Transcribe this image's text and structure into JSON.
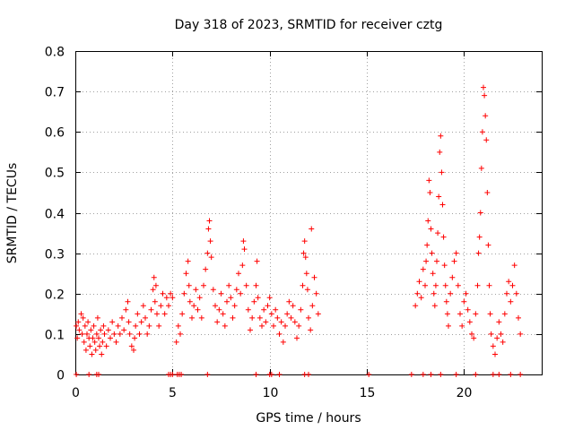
{
  "chart_data": {
    "type": "scatter",
    "title": "Day 318 of 2023, SRMTID for receiver cztg",
    "xlabel": "GPS time / hours",
    "ylabel": "SRMTID / TECUs",
    "xlim": [
      0,
      24
    ],
    "ylim": [
      0,
      0.8
    ],
    "xticks": [
      0,
      5,
      10,
      15,
      20
    ],
    "yticks": [
      0,
      0.1,
      0.2,
      0.3,
      0.4,
      0.5,
      0.6,
      0.7,
      0.8
    ],
    "grid": true,
    "marker": "+",
    "color": "#ff0000",
    "series": [
      {
        "name": "SRMTID",
        "points": [
          [
            0.05,
            0.12
          ],
          [
            0.1,
            0.09
          ],
          [
            0.15,
            0.13
          ],
          [
            0.2,
            0.11
          ],
          [
            0.3,
            0.15
          ],
          [
            0.35,
            0.1
          ],
          [
            0.4,
            0.14
          ],
          [
            0.45,
            0.08
          ],
          [
            0.5,
            0.12
          ],
          [
            0.55,
            0.06
          ],
          [
            0.6,
            0.1
          ],
          [
            0.65,
            0.13
          ],
          [
            0.7,
            0.09
          ],
          [
            0.75,
            0.07
          ],
          [
            0.8,
            0.11
          ],
          [
            0.85,
            0.05
          ],
          [
            0.9,
            0.09
          ],
          [
            0.95,
            0.12
          ],
          [
            1.0,
            0.08
          ],
          [
            1.05,
            0.06
          ],
          [
            1.1,
            0.1
          ],
          [
            1.15,
            0.14
          ],
          [
            1.2,
            0.09
          ],
          [
            1.25,
            0.07
          ],
          [
            1.3,
            0.11
          ],
          [
            1.35,
            0.05
          ],
          [
            1.4,
            0.08
          ],
          [
            1.45,
            0.12
          ],
          [
            1.5,
            0.1
          ],
          [
            1.6,
            0.07
          ],
          [
            1.7,
            0.11
          ],
          [
            1.8,
            0.09
          ],
          [
            1.9,
            0.13
          ],
          [
            2.0,
            0.1
          ],
          [
            2.1,
            0.08
          ],
          [
            2.2,
            0.12
          ],
          [
            2.3,
            0.1
          ],
          [
            2.4,
            0.14
          ],
          [
            2.5,
            0.11
          ],
          [
            2.6,
            0.16
          ],
          [
            2.7,
            0.18
          ],
          [
            2.75,
            0.13
          ],
          [
            2.8,
            0.1
          ],
          [
            2.9,
            0.07
          ],
          [
            3.0,
            0.06
          ],
          [
            3.05,
            0.09
          ],
          [
            3.1,
            0.12
          ],
          [
            3.2,
            0.15
          ],
          [
            3.3,
            0.1
          ],
          [
            3.4,
            0.13
          ],
          [
            3.5,
            0.17
          ],
          [
            3.6,
            0.14
          ],
          [
            3.7,
            0.1
          ],
          [
            3.8,
            0.12
          ],
          [
            3.9,
            0.16
          ],
          [
            4.0,
            0.21
          ],
          [
            4.05,
            0.24
          ],
          [
            4.1,
            0.18
          ],
          [
            4.15,
            0.22
          ],
          [
            4.2,
            0.15
          ],
          [
            4.3,
            0.12
          ],
          [
            4.4,
            0.17
          ],
          [
            4.5,
            0.2
          ],
          [
            4.6,
            0.15
          ],
          [
            4.7,
            0.19
          ],
          [
            4.8,
            0.17
          ],
          [
            4.9,
            0.2
          ],
          [
            5.0,
            0.19
          ],
          [
            5.2,
            0.08
          ],
          [
            5.3,
            0.12
          ],
          [
            5.4,
            0.1
          ],
          [
            5.5,
            0.15
          ],
          [
            5.6,
            0.2
          ],
          [
            5.7,
            0.25
          ],
          [
            5.8,
            0.28
          ],
          [
            5.85,
            0.22
          ],
          [
            5.9,
            0.18
          ],
          [
            6.0,
            0.14
          ],
          [
            6.1,
            0.17
          ],
          [
            6.2,
            0.21
          ],
          [
            6.3,
            0.16
          ],
          [
            6.4,
            0.19
          ],
          [
            6.5,
            0.14
          ],
          [
            6.6,
            0.22
          ],
          [
            6.7,
            0.26
          ],
          [
            6.8,
            0.3
          ],
          [
            6.85,
            0.36
          ],
          [
            6.9,
            0.38
          ],
          [
            6.95,
            0.33
          ],
          [
            7.0,
            0.29
          ],
          [
            7.1,
            0.21
          ],
          [
            7.2,
            0.17
          ],
          [
            7.3,
            0.13
          ],
          [
            7.4,
            0.16
          ],
          [
            7.5,
            0.2
          ],
          [
            7.6,
            0.15
          ],
          [
            7.7,
            0.12
          ],
          [
            7.8,
            0.18
          ],
          [
            7.9,
            0.22
          ],
          [
            8.0,
            0.19
          ],
          [
            8.1,
            0.14
          ],
          [
            8.2,
            0.17
          ],
          [
            8.3,
            0.21
          ],
          [
            8.4,
            0.25
          ],
          [
            8.5,
            0.2
          ],
          [
            8.6,
            0.27
          ],
          [
            8.65,
            0.33
          ],
          [
            8.7,
            0.31
          ],
          [
            8.8,
            0.22
          ],
          [
            8.9,
            0.16
          ],
          [
            9.0,
            0.11
          ],
          [
            9.1,
            0.14
          ],
          [
            9.2,
            0.18
          ],
          [
            9.3,
            0.22
          ],
          [
            9.35,
            0.28
          ],
          [
            9.4,
            0.19
          ],
          [
            9.5,
            0.14
          ],
          [
            9.6,
            0.12
          ],
          [
            9.7,
            0.16
          ],
          [
            9.8,
            0.13
          ],
          [
            9.9,
            0.17
          ],
          [
            10.0,
            0.19
          ],
          [
            10.1,
            0.15
          ],
          [
            10.2,
            0.12
          ],
          [
            10.3,
            0.16
          ],
          [
            10.4,
            0.14
          ],
          [
            10.5,
            0.1
          ],
          [
            10.6,
            0.13
          ],
          [
            10.7,
            0.08
          ],
          [
            10.8,
            0.12
          ],
          [
            10.9,
            0.15
          ],
          [
            11.0,
            0.18
          ],
          [
            11.1,
            0.14
          ],
          [
            11.2,
            0.17
          ],
          [
            11.3,
            0.13
          ],
          [
            11.4,
            0.09
          ],
          [
            11.5,
            0.12
          ],
          [
            11.6,
            0.16
          ],
          [
            11.7,
            0.22
          ],
          [
            11.75,
            0.3
          ],
          [
            11.8,
            0.33
          ],
          [
            11.85,
            0.29
          ],
          [
            11.9,
            0.25
          ],
          [
            11.95,
            0.21
          ],
          [
            12.0,
            0.14
          ],
          [
            12.1,
            0.11
          ],
          [
            12.15,
            0.36
          ],
          [
            12.2,
            0.17
          ],
          [
            12.3,
            0.24
          ],
          [
            12.4,
            0.2
          ],
          [
            12.5,
            0.15
          ],
          [
            17.5,
            0.17
          ],
          [
            17.6,
            0.2
          ],
          [
            17.7,
            0.23
          ],
          [
            17.8,
            0.19
          ],
          [
            17.9,
            0.26
          ],
          [
            18.0,
            0.22
          ],
          [
            18.05,
            0.28
          ],
          [
            18.1,
            0.32
          ],
          [
            18.15,
            0.38
          ],
          [
            18.2,
            0.48
          ],
          [
            18.25,
            0.45
          ],
          [
            18.3,
            0.36
          ],
          [
            18.35,
            0.3
          ],
          [
            18.4,
            0.25
          ],
          [
            18.45,
            0.2
          ],
          [
            18.5,
            0.17
          ],
          [
            18.55,
            0.22
          ],
          [
            18.6,
            0.28
          ],
          [
            18.65,
            0.35
          ],
          [
            18.7,
            0.44
          ],
          [
            18.75,
            0.55
          ],
          [
            18.8,
            0.59
          ],
          [
            18.85,
            0.5
          ],
          [
            18.9,
            0.42
          ],
          [
            18.95,
            0.34
          ],
          [
            19.0,
            0.27
          ],
          [
            19.05,
            0.22
          ],
          [
            19.1,
            0.18
          ],
          [
            19.15,
            0.15
          ],
          [
            19.2,
            0.12
          ],
          [
            19.3,
            0.2
          ],
          [
            19.4,
            0.24
          ],
          [
            19.5,
            0.28
          ],
          [
            19.6,
            0.3
          ],
          [
            19.7,
            0.22
          ],
          [
            19.8,
            0.15
          ],
          [
            19.9,
            0.12
          ],
          [
            20.0,
            0.18
          ],
          [
            20.1,
            0.2
          ],
          [
            20.2,
            0.16
          ],
          [
            20.3,
            0.13
          ],
          [
            20.4,
            0.1
          ],
          [
            20.5,
            0.09
          ],
          [
            20.6,
            0.15
          ],
          [
            20.7,
            0.22
          ],
          [
            20.75,
            0.3
          ],
          [
            20.8,
            0.34
          ],
          [
            20.85,
            0.4
          ],
          [
            20.9,
            0.51
          ],
          [
            20.95,
            0.6
          ],
          [
            21.0,
            0.71
          ],
          [
            21.05,
            0.69
          ],
          [
            21.1,
            0.64
          ],
          [
            21.15,
            0.58
          ],
          [
            21.2,
            0.45
          ],
          [
            21.25,
            0.32
          ],
          [
            21.3,
            0.22
          ],
          [
            21.35,
            0.15
          ],
          [
            21.4,
            0.1
          ],
          [
            21.5,
            0.07
          ],
          [
            21.6,
            0.05
          ],
          [
            21.7,
            0.09
          ],
          [
            21.8,
            0.13
          ],
          [
            21.9,
            0.1
          ],
          [
            22.0,
            0.08
          ],
          [
            22.1,
            0.15
          ],
          [
            22.2,
            0.2
          ],
          [
            22.3,
            0.23
          ],
          [
            22.4,
            0.18
          ],
          [
            22.5,
            0.22
          ],
          [
            22.6,
            0.27
          ],
          [
            22.7,
            0.2
          ],
          [
            22.8,
            0.14
          ],
          [
            22.9,
            0.1
          ],
          [
            0.05,
            0.0
          ],
          [
            0.7,
            0.0
          ],
          [
            1.1,
            0.0
          ],
          [
            1.2,
            0.0
          ],
          [
            4.8,
            0.0
          ],
          [
            4.9,
            0.0
          ],
          [
            5.0,
            0.0
          ],
          [
            5.25,
            0.0
          ],
          [
            5.35,
            0.0
          ],
          [
            5.45,
            0.0
          ],
          [
            6.8,
            0.0
          ],
          [
            9.3,
            0.0
          ],
          [
            10.0,
            0.0
          ],
          [
            10.1,
            0.0
          ],
          [
            10.5,
            0.0
          ],
          [
            11.8,
            0.0
          ],
          [
            12.0,
            0.0
          ],
          [
            15.1,
            0.0
          ],
          [
            17.3,
            0.0
          ],
          [
            17.9,
            0.0
          ],
          [
            18.3,
            0.0
          ],
          [
            18.8,
            0.0
          ],
          [
            19.6,
            0.0
          ],
          [
            20.6,
            0.0
          ],
          [
            21.5,
            0.0
          ],
          [
            21.8,
            0.0
          ],
          [
            22.4,
            0.0
          ],
          [
            22.9,
            0.0
          ]
        ]
      }
    ]
  }
}
